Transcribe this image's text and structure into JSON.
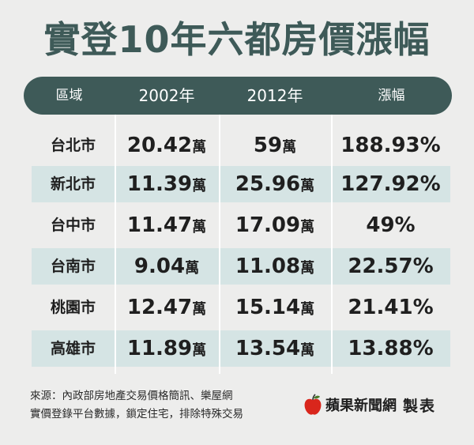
{
  "title": "實登10年六都房價漲幅",
  "headers": {
    "area": "區域",
    "y2002": "2002年",
    "y2012": "2012年",
    "change": "漲幅"
  },
  "unit": "萬",
  "rows": [
    {
      "area": "台北市",
      "y2002": "20.42",
      "y2012": "59",
      "change": "188.93%"
    },
    {
      "area": "新北市",
      "y2002": "11.39",
      "y2012": "25.96",
      "change": "127.92%"
    },
    {
      "area": "台中市",
      "y2002": "11.47",
      "y2012": "17.09",
      "change": "49%"
    },
    {
      "area": "台南市",
      "y2002": "9.04",
      "y2012": "11.08",
      "change": "22.57%"
    },
    {
      "area": "桃園市",
      "y2002": "12.47",
      "y2012": "15.14",
      "change": "21.41%"
    },
    {
      "area": "高雄市",
      "y2002": "11.89",
      "y2012": "13.54",
      "change": "13.88%"
    }
  ],
  "source": {
    "line1": "來源：內政部房地產交易價格簡訊、樂屋網",
    "line2": "實價登錄平台數據，鎖定住宅，排除特殊交易"
  },
  "brand": {
    "name": "蘋果新聞網",
    "made": "製表",
    "color": "#d9261c"
  },
  "colors": {
    "header": "#3e5a58",
    "stripe": "#d5e4e4",
    "background": "#ededec"
  }
}
